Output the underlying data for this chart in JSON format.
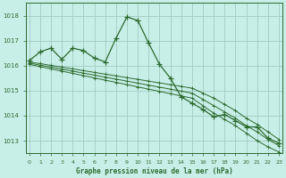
{
  "title": "Graphe pression niveau de la mer (hPa)",
  "bg_color": "#c8eee8",
  "grid_color": "#a0ccc0",
  "line_color": "#2d6a2d",
  "ylim": [
    1012.5,
    1018.5
  ],
  "xlim": [
    -0.3,
    23.3
  ],
  "yticks": [
    1013,
    1014,
    1015,
    1016,
    1017,
    1018
  ],
  "xticks": [
    0,
    1,
    2,
    3,
    4,
    5,
    6,
    7,
    8,
    9,
    10,
    11,
    12,
    13,
    14,
    15,
    16,
    17,
    18,
    19,
    20,
    21,
    22,
    23
  ],
  "series_main": [
    1016.2,
    1016.55,
    1016.7,
    1016.25,
    1016.7,
    1016.6,
    1016.3,
    1016.15,
    1017.1,
    1017.95,
    1017.8,
    1016.9,
    1016.05,
    1015.5,
    1014.75,
    1014.5,
    1014.25,
    1013.95,
    1014.05,
    1013.8,
    1013.55,
    1013.55,
    1013.1,
    1012.9
  ],
  "series_linear": [
    [
      1016.15,
      1016.08,
      1016.01,
      1015.94,
      1015.87,
      1015.8,
      1015.73,
      1015.66,
      1015.59,
      1015.52,
      1015.45,
      1015.38,
      1015.31,
      1015.24,
      1015.17,
      1015.1,
      1014.9,
      1014.7,
      1014.45,
      1014.2,
      1013.9,
      1013.65,
      1013.35,
      1013.05
    ],
    [
      1016.1,
      1016.02,
      1015.94,
      1015.86,
      1015.78,
      1015.7,
      1015.62,
      1015.54,
      1015.46,
      1015.38,
      1015.3,
      1015.22,
      1015.14,
      1015.06,
      1014.98,
      1014.9,
      1014.65,
      1014.4,
      1014.15,
      1013.9,
      1013.6,
      1013.35,
      1013.05,
      1012.8
    ],
    [
      1016.05,
      1015.96,
      1015.87,
      1015.78,
      1015.69,
      1015.6,
      1015.51,
      1015.42,
      1015.33,
      1015.24,
      1015.15,
      1015.06,
      1014.97,
      1014.88,
      1014.79,
      1014.7,
      1014.4,
      1014.1,
      1013.85,
      1013.6,
      1013.3,
      1013.0,
      1012.75,
      1012.55
    ]
  ]
}
